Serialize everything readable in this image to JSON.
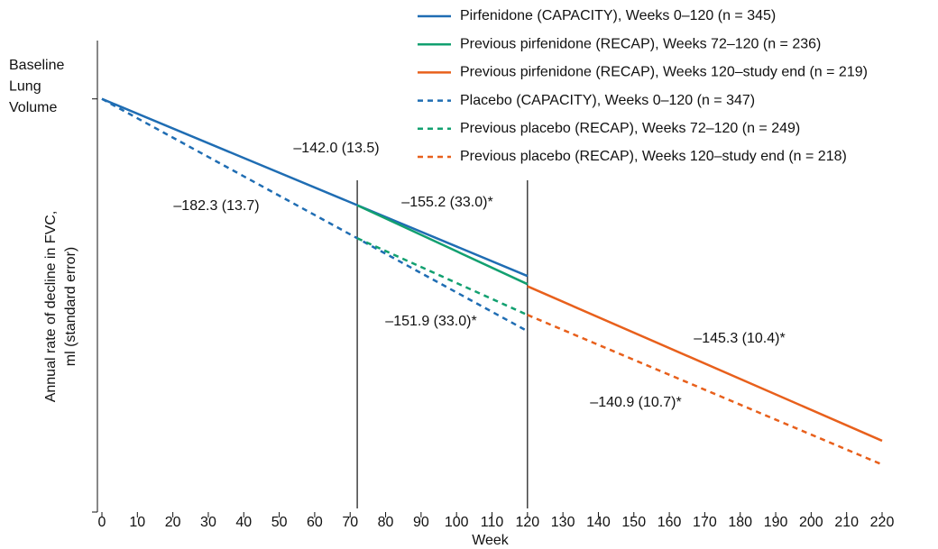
{
  "chart_data": {
    "type": "line",
    "xlabel": "Week",
    "ylabel": [
      "Annual rate of decline in FVC,",
      "ml (standard error)"
    ],
    "xlim": [
      0,
      220
    ],
    "xticks": [
      0,
      10,
      20,
      30,
      40,
      50,
      60,
      70,
      80,
      90,
      100,
      110,
      120,
      130,
      140,
      150,
      160,
      170,
      180,
      190,
      200,
      210,
      220
    ],
    "ylim": [
      -765,
      108
    ],
    "yticks": [
      {
        "value": 0,
        "label": [
          "Baseline",
          "Lung",
          "Volume"
        ]
      }
    ],
    "vlines": [
      72,
      120
    ],
    "series": [
      {
        "name": "Pirfenidone (CAPACITY), Weeks 0–120 (n = 345)",
        "color": "#1f6db3",
        "dashed": false,
        "x": [
          0,
          120
        ],
        "values": [
          0,
          -328
        ]
      },
      {
        "name": "Previous pirfenidone (RECAP), Weeks 72–120 (n = 236)",
        "color": "#12a070",
        "dashed": false,
        "x": [
          72,
          120
        ],
        "values": [
          -197,
          -343
        ]
      },
      {
        "name": "Previous pirfenidone (RECAP), Weeks 120–study end (n = 219)",
        "color": "#e8601c",
        "dashed": false,
        "x": [
          120,
          220
        ],
        "values": [
          -347,
          -633
        ]
      },
      {
        "name": "Placebo (CAPACITY), Weeks 0–120 (n = 347)",
        "color": "#1f6db3",
        "dashed": true,
        "x": [
          0,
          120
        ],
        "values": [
          0,
          -430
        ]
      },
      {
        "name": "Previous placebo (RECAP), Weeks 72–120 (n = 249)",
        "color": "#12a070",
        "dashed": true,
        "x": [
          72,
          120
        ],
        "values": [
          -258,
          -400
        ]
      },
      {
        "name": "Previous placebo (RECAP), Weeks 120–study end (n = 218)",
        "color": "#e8601c",
        "dashed": true,
        "x": [
          120,
          220
        ],
        "values": [
          -400,
          -677
        ]
      }
    ],
    "annotations": [
      {
        "text": "–142.0 (13.5)",
        "color": "#1f6db3"
      },
      {
        "text": "–182.3 (13.7)",
        "color": "#1f6db3"
      },
      {
        "text": "–155.2 (33.0)*",
        "color": "#12a070"
      },
      {
        "text": "–151.9 (33.0)*",
        "color": "#12a070"
      },
      {
        "text": "–145.3 (10.4)*",
        "color": "#e8601c"
      },
      {
        "text": "–140.9 (10.7)*",
        "color": "#e8601c"
      }
    ]
  }
}
